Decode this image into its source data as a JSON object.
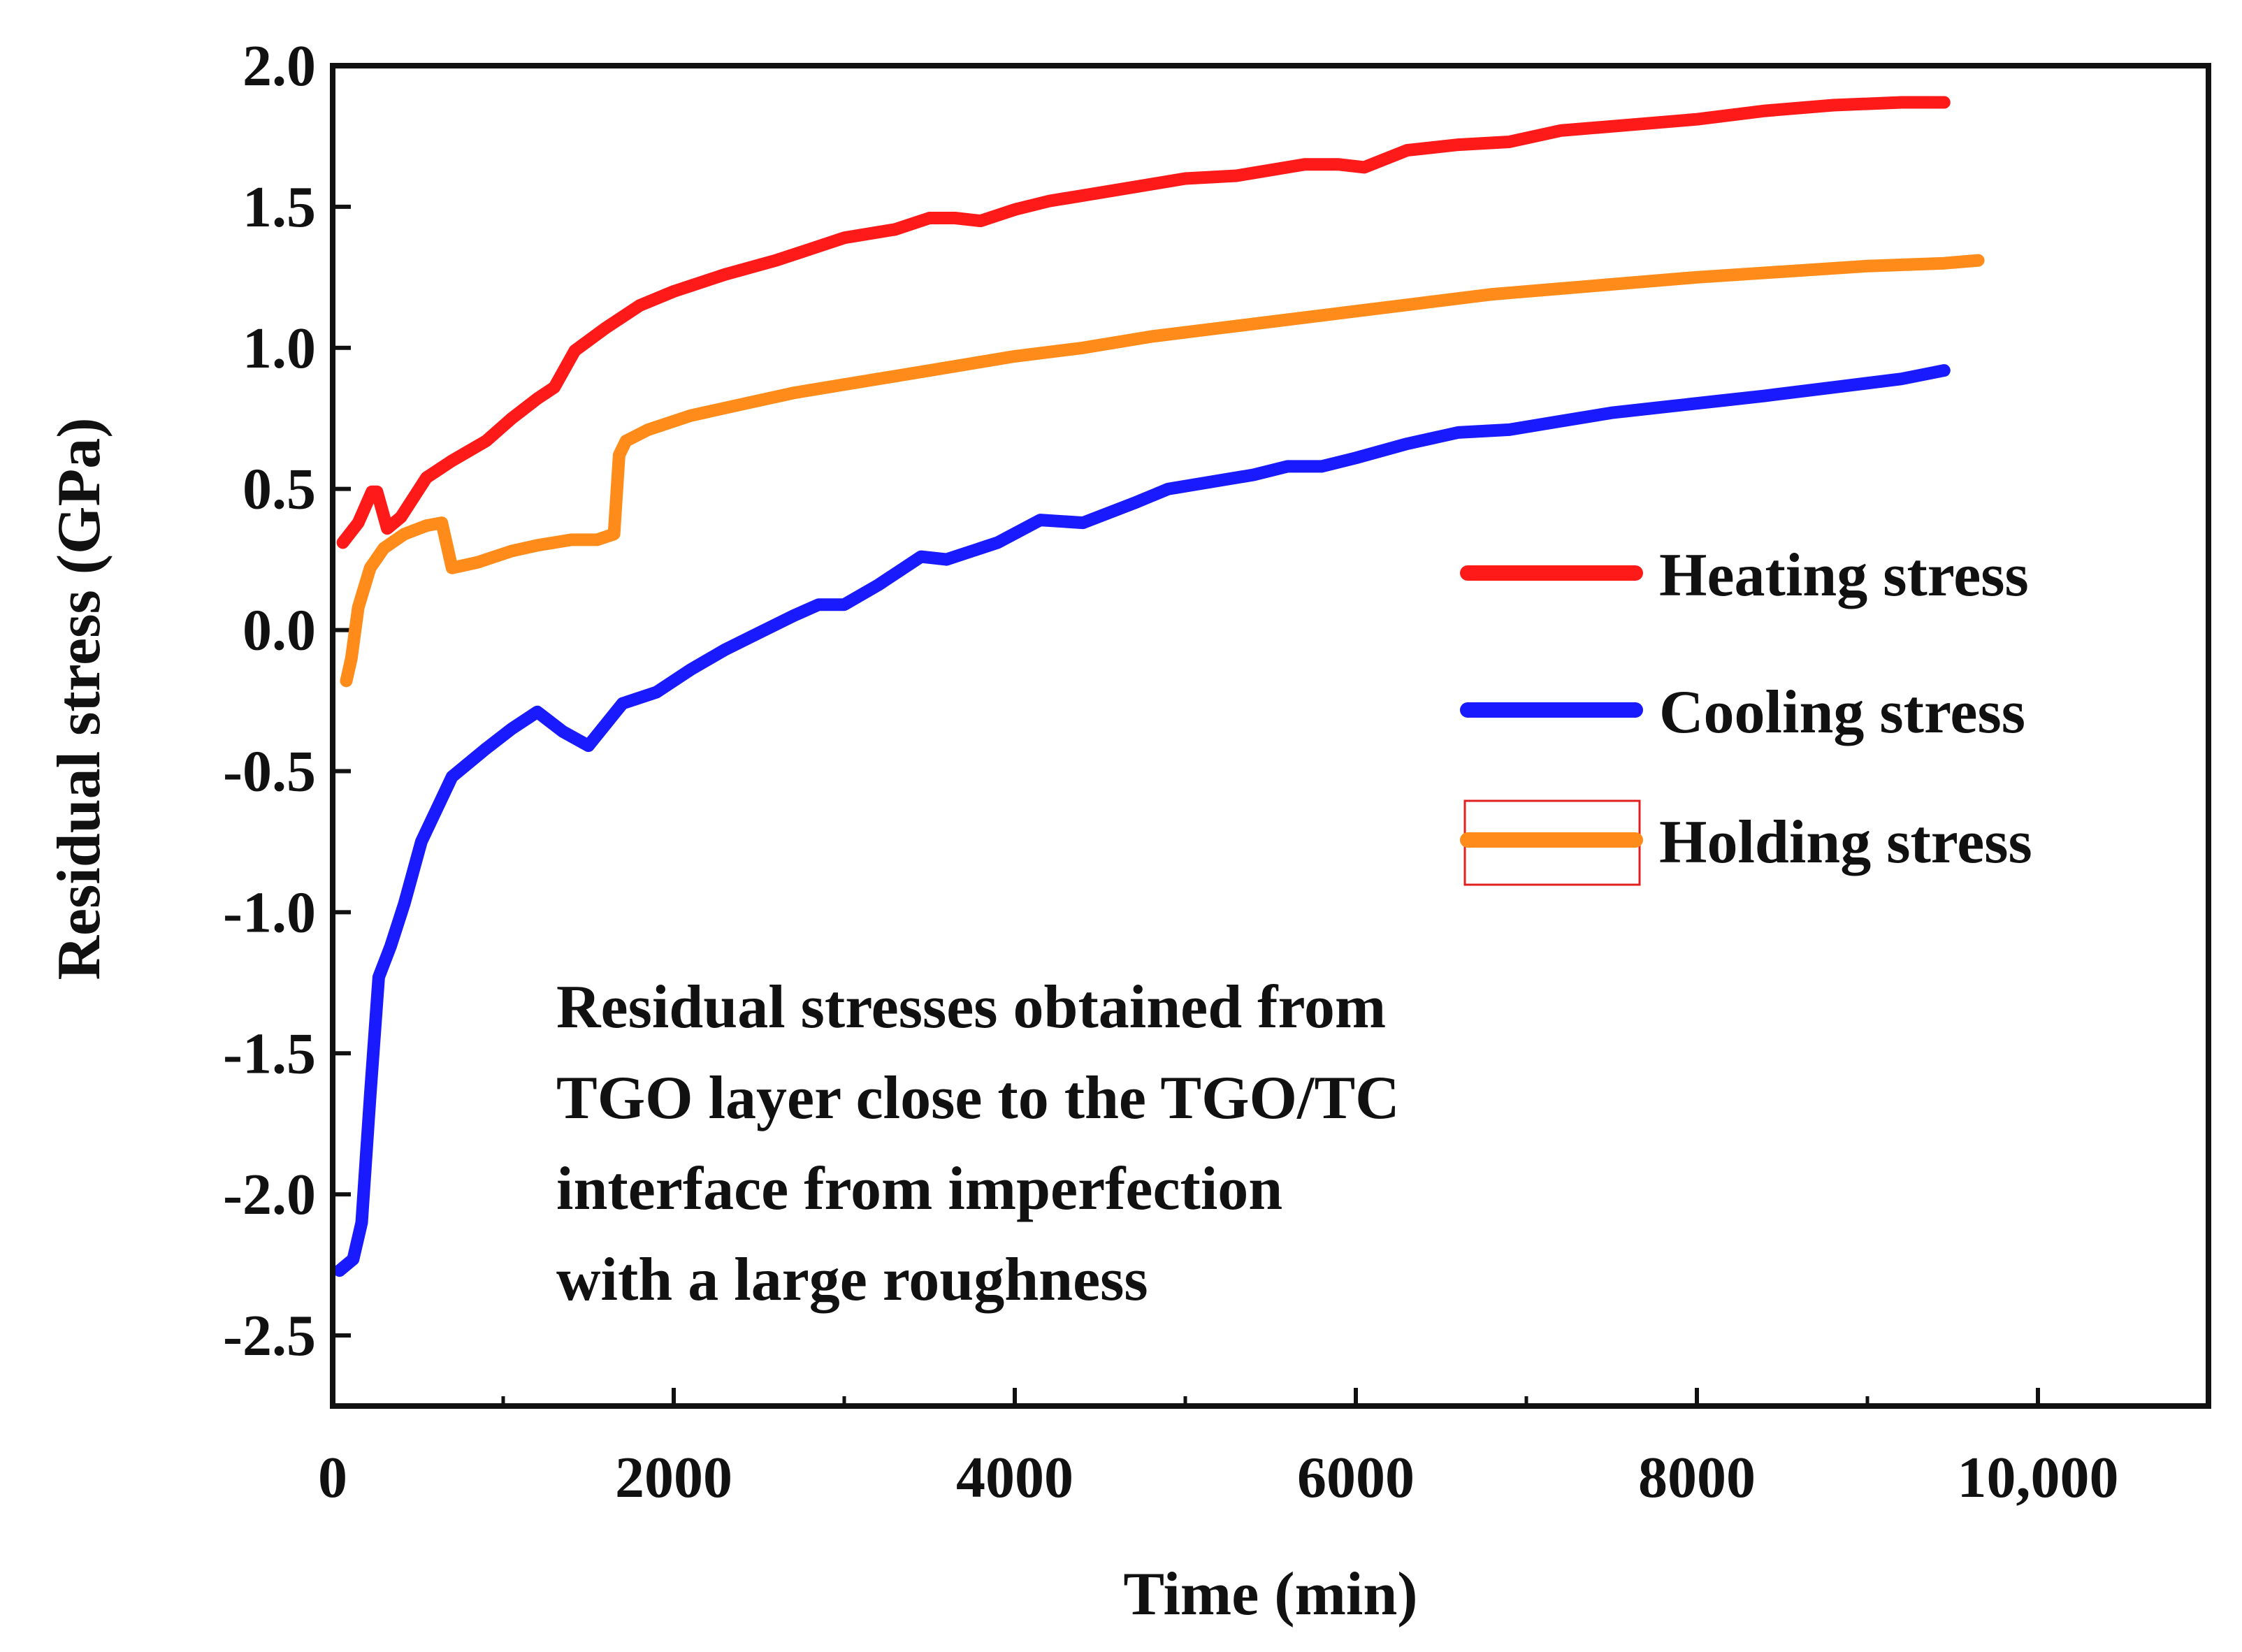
{
  "chart_data": {
    "type": "line",
    "title": "",
    "xlabel": "Time (min)",
    "ylabel": "Residual stress (GPa)",
    "xlim": [
      0,
      11000
    ],
    "ylim": [
      -2.75,
      2.0
    ],
    "x_ticks": [
      {
        "value": 0,
        "label": "0"
      },
      {
        "value": 2000,
        "label": "2000"
      },
      {
        "value": 4000,
        "label": "4000"
      },
      {
        "value": 6000,
        "label": "6000"
      },
      {
        "value": 8000,
        "label": "8000"
      },
      {
        "value": 10000,
        "label": "10,000"
      }
    ],
    "y_ticks": [
      {
        "value": 2.0,
        "label": "2.0"
      },
      {
        "value": 1.5,
        "label": "1.5"
      },
      {
        "value": 1.0,
        "label": "1.0"
      },
      {
        "value": 0.5,
        "label": "0.5"
      },
      {
        "value": 0.0,
        "label": "0.0"
      },
      {
        "value": -0.5,
        "label": "-0.5"
      },
      {
        "value": -1.0,
        "label": "-1.0"
      },
      {
        "value": -1.5,
        "label": "-1.5"
      },
      {
        "value": -2.0,
        "label": "-2.0"
      },
      {
        "value": -2.5,
        "label": "-2.5"
      }
    ],
    "grid": false,
    "legend_position": "right-middle",
    "series": [
      {
        "name": "Heating stress",
        "color": "#ff1a1a",
        "x": [
          60,
          150,
          230,
          260,
          320,
          400,
          550,
          700,
          900,
          1050,
          1200,
          1300,
          1420,
          1600,
          1800,
          2000,
          2300,
          2600,
          2800,
          3000,
          3300,
          3500,
          3650,
          3800,
          4000,
          4200,
          4500,
          4800,
          5000,
          5300,
          5500,
          5700,
          5900,
          6050,
          6300,
          6600,
          6900,
          7200,
          7600,
          8000,
          8400,
          8800,
          9200,
          9450
        ],
        "y": [
          0.31,
          0.38,
          0.49,
          0.49,
          0.36,
          0.4,
          0.54,
          0.6,
          0.67,
          0.75,
          0.82,
          0.86,
          0.99,
          1.07,
          1.15,
          1.2,
          1.26,
          1.31,
          1.35,
          1.39,
          1.42,
          1.46,
          1.46,
          1.45,
          1.49,
          1.52,
          1.55,
          1.58,
          1.6,
          1.61,
          1.63,
          1.65,
          1.65,
          1.64,
          1.7,
          1.72,
          1.73,
          1.77,
          1.79,
          1.81,
          1.84,
          1.86,
          1.87,
          1.87
        ]
      },
      {
        "name": "Cooling stress",
        "color": "#1a1aff",
        "x": [
          40,
          120,
          170,
          220,
          270,
          340,
          420,
          520,
          700,
          900,
          1050,
          1200,
          1350,
          1500,
          1700,
          1900,
          2100,
          2300,
          2500,
          2700,
          2850,
          3000,
          3200,
          3450,
          3600,
          3900,
          4150,
          4400,
          4700,
          4900,
          5100,
          5400,
          5600,
          5800,
          6000,
          6300,
          6600,
          6900,
          7200,
          7500,
          7800,
          8100,
          8400,
          8800,
          9200,
          9450
        ],
        "y": [
          -2.27,
          -2.23,
          -2.1,
          -1.65,
          -1.23,
          -1.12,
          -0.97,
          -0.75,
          -0.52,
          -0.42,
          -0.35,
          -0.29,
          -0.36,
          -0.41,
          -0.26,
          -0.22,
          -0.14,
          -0.07,
          -0.01,
          0.05,
          0.09,
          0.09,
          0.16,
          0.26,
          0.25,
          0.31,
          0.39,
          0.38,
          0.45,
          0.5,
          0.52,
          0.55,
          0.58,
          0.58,
          0.61,
          0.66,
          0.7,
          0.71,
          0.74,
          0.77,
          0.79,
          0.81,
          0.83,
          0.86,
          0.89,
          0.92
        ]
      },
      {
        "name": "Holding stress",
        "color": "#ff8c1a",
        "x": [
          80,
          110,
          150,
          220,
          300,
          420,
          550,
          640,
          700,
          850,
          1050,
          1200,
          1400,
          1550,
          1650,
          1680,
          1720,
          1850,
          2100,
          2400,
          2700,
          3000,
          3300,
          3600,
          4000,
          4400,
          4800,
          5200,
          5600,
          6000,
          6400,
          6800,
          7200,
          7600,
          8000,
          8500,
          9000,
          9450,
          9650
        ],
        "y": [
          -0.18,
          -0.1,
          0.08,
          0.22,
          0.29,
          0.34,
          0.37,
          0.38,
          0.22,
          0.24,
          0.28,
          0.3,
          0.32,
          0.32,
          0.34,
          0.62,
          0.67,
          0.71,
          0.76,
          0.8,
          0.84,
          0.87,
          0.9,
          0.93,
          0.97,
          1.0,
          1.04,
          1.07,
          1.1,
          1.13,
          1.16,
          1.19,
          1.21,
          1.23,
          1.25,
          1.27,
          1.29,
          1.3,
          1.31
        ]
      }
    ],
    "annotation_lines": [
      "Residual stresses obtained from",
      "TGO layer close to the TGO/TC",
      "interface from imperfection",
      "with a large roughness"
    ]
  }
}
